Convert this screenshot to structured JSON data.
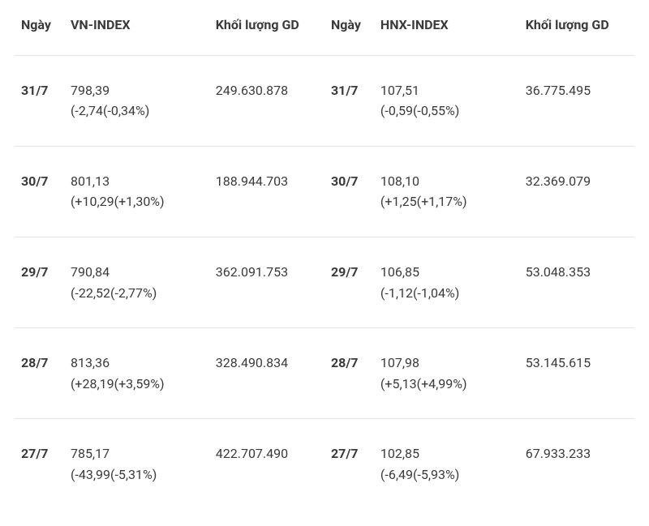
{
  "columns_left": {
    "date": "Ngày",
    "index": "VN-INDEX",
    "volume": "Khối lượng GD"
  },
  "columns_right": {
    "date": "Ngày",
    "index": "HNX-INDEX",
    "volume": "Khối lượng GD"
  },
  "rows": [
    {
      "left": {
        "date": "31/7",
        "value": "798,39",
        "change": "(-2,74(-0,34%)",
        "volume": "249.630.878"
      },
      "right": {
        "date": "31/7",
        "value": "107,51",
        "change": "(-0,59(-0,55%)",
        "volume": "36.775.495"
      }
    },
    {
      "left": {
        "date": "30/7",
        "value": "801,13",
        "change": "(+10,29(+1,30%)",
        "volume": "188.944.703"
      },
      "right": {
        "date": "30/7",
        "value": "108,10",
        "change": "(+1,25(+1,17%)",
        "volume": "32.369.079"
      }
    },
    {
      "left": {
        "date": "29/7",
        "value": "790,84",
        "change": "(-22,52(-2,77%)",
        "volume": "362.091.753"
      },
      "right": {
        "date": "29/7",
        "value": "106,85",
        "change": "(-1,12(-1,04%)",
        "volume": "53.048.353"
      }
    },
    {
      "left": {
        "date": "28/7",
        "value": "813,36",
        "change": "(+28,19(+3,59%)",
        "volume": "328.490.834"
      },
      "right": {
        "date": "28/7",
        "value": "107,98",
        "change": "(+5,13(+4,99%)",
        "volume": "53.145.615"
      }
    },
    {
      "left": {
        "date": "27/7",
        "value": "785,17",
        "change": "(-43,99(-5,31%)",
        "volume": "422.707.490"
      },
      "right": {
        "date": "27/7",
        "value": "102,85",
        "change": "(-6,49(-5,93%)",
        "volume": "67.933.233"
      }
    }
  ],
  "style": {
    "text_color": "#3a3a3a",
    "background_color": "#ffffff",
    "border_color": "#e5e5e5",
    "font_size": 16,
    "row_padding_y": 30
  }
}
